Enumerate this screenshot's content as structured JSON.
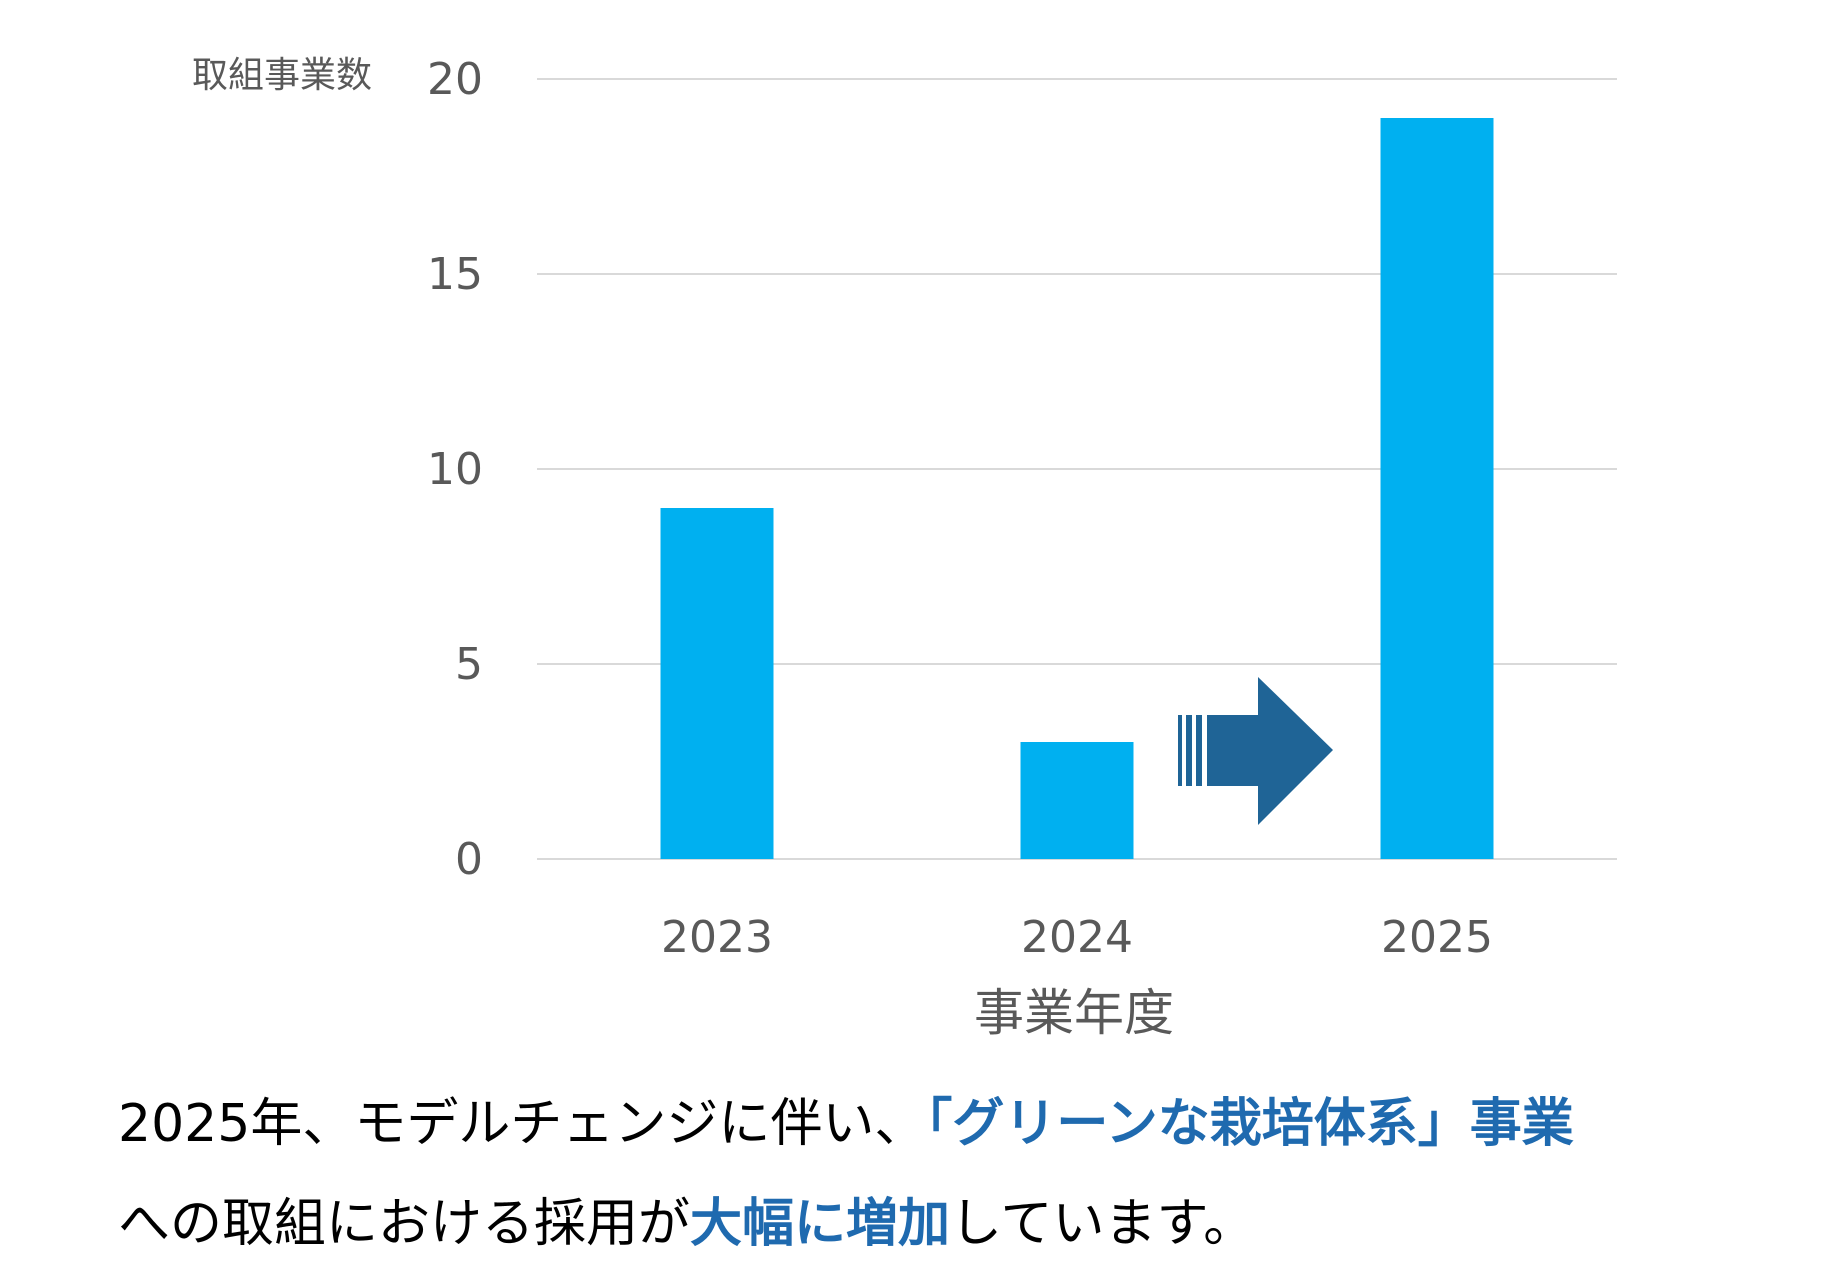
{
  "chart_data": {
    "type": "bar",
    "categories": [
      "2023",
      "2024",
      "2025"
    ],
    "values": [
      9,
      3,
      19
    ],
    "ylabel": "取組事業数",
    "xlabel": "事業年度",
    "ylim": [
      0,
      20
    ],
    "yticks": [
      0,
      5,
      10,
      15,
      20
    ],
    "grid": true,
    "bar_color": "#00B0F0",
    "arrow_color": "#1F6496",
    "annotation": "arrow from 2024 toward 2025"
  },
  "caption": {
    "line1": {
      "part1": "2025年、モデルチェンジに伴い、",
      "highlight": "「グリーンな栽培体系」事業",
      "part2": ""
    },
    "line2": {
      "part1": "への取組における採用が",
      "highlight": "大幅に増加",
      "part2": "しています。"
    },
    "text_color": "#000000",
    "highlight_color": "#1F6AAF"
  }
}
